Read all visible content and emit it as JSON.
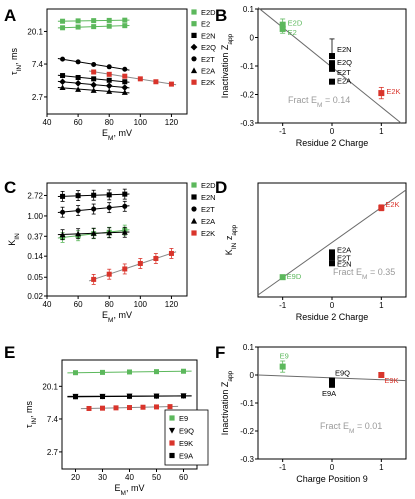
{
  "colors": {
    "green": "#5cb85c",
    "red": "#d9342b",
    "black": "#000000",
    "fit": "#6b6b6b",
    "grid": "#bfbfbf"
  },
  "panels": {
    "A": {
      "letter": "A"
    },
    "B": {
      "letter": "B"
    },
    "C": {
      "letter": "C"
    },
    "D": {
      "letter": "D"
    },
    "E": {
      "letter": "E"
    },
    "F": {
      "letter": "F"
    }
  },
  "chart_data": [
    {
      "id": "A",
      "type": "scatter",
      "xlabel": "E_M, mV",
      "ylabel": "τ_IN, ms",
      "xlim": [
        40,
        130
      ],
      "ylim_log": [
        1.6,
        40
      ],
      "xticks": [
        40,
        60,
        80,
        100,
        120
      ],
      "yticks": [
        {
          "v": 2.7,
          "t": "2.7"
        },
        {
          "v": 7.4,
          "t": "7.4"
        },
        {
          "v": 20.1,
          "t": "20.1"
        }
      ],
      "legend": [
        {
          "name": "E2D",
          "color": "green",
          "marker": "square"
        },
        {
          "name": "E2",
          "color": "green",
          "marker": "square"
        },
        {
          "name": "E2N",
          "color": "black",
          "marker": "square"
        },
        {
          "name": "E2Q",
          "color": "black",
          "marker": "diamond"
        },
        {
          "name": "E2T",
          "color": "black",
          "marker": "circle"
        },
        {
          "name": "E2A",
          "color": "black",
          "marker": "triangle"
        },
        {
          "name": "E2K",
          "color": "red",
          "marker": "square"
        }
      ],
      "series": [
        {
          "name": "E2D",
          "color": "green",
          "marker": "square",
          "x": [
            50,
            60,
            70,
            80,
            90
          ],
          "y": [
            27.5,
            27.8,
            28.0,
            28.2,
            28.4
          ]
        },
        {
          "name": "E2",
          "color": "green",
          "marker": "square",
          "x": [
            50,
            60,
            70,
            80,
            90
          ],
          "y": [
            22.5,
            23.0,
            23.3,
            23.6,
            24.0
          ]
        },
        {
          "name": "E2T",
          "color": "black",
          "marker": "circle",
          "x": [
            50,
            60,
            70,
            80,
            90
          ],
          "y": [
            8.6,
            7.9,
            7.3,
            6.8,
            6.3
          ]
        },
        {
          "name": "E2N",
          "color": "black",
          "marker": "square",
          "x": [
            50,
            60,
            70,
            80,
            90
          ],
          "y": [
            5.2,
            4.9,
            4.7,
            4.5,
            4.3
          ]
        },
        {
          "name": "E2Q",
          "color": "black",
          "marker": "diamond",
          "x": [
            50,
            60,
            70,
            80,
            90
          ],
          "y": [
            4.3,
            4.1,
            3.9,
            3.8,
            3.6
          ]
        },
        {
          "name": "E2A",
          "color": "black",
          "marker": "triangle",
          "x": [
            50,
            60,
            70,
            80,
            90
          ],
          "y": [
            3.6,
            3.4,
            3.3,
            3.2,
            3.1
          ]
        },
        {
          "name": "E2K",
          "color": "red",
          "marker": "square",
          "x": [
            70,
            80,
            90,
            100,
            110,
            120
          ],
          "y": [
            5.8,
            5.4,
            5.1,
            4.7,
            4.3,
            4.0
          ]
        }
      ]
    },
    {
      "id": "B",
      "type": "scatter",
      "xlabel": "Residue 2 Charge",
      "ylabel": "Inactivation Z_app",
      "xlim": [
        -1.5,
        1.5
      ],
      "ylim": [
        -0.3,
        0.1
      ],
      "xticks": [
        -1,
        0,
        1
      ],
      "yticks": [
        0.1,
        0,
        -0.1,
        -0.2,
        -0.3
      ],
      "annotation": "Fract E_M = 0.14",
      "fit": {
        "x": [
          -1.5,
          1.4
        ],
        "y": [
          0.105,
          -0.3
        ]
      },
      "points": [
        {
          "label": "E2D",
          "x": -1,
          "y": 0.045,
          "err": 0.02,
          "color": "green"
        },
        {
          "label": "E2",
          "x": -1,
          "y": 0.03,
          "err": 0.015,
          "color": "green"
        },
        {
          "label": "E2N",
          "x": 0,
          "y": -0.065,
          "err": 0.0,
          "color": "black"
        },
        {
          "label": "E2Q",
          "x": 0,
          "y": -0.09,
          "err": 0.0,
          "color": "black"
        },
        {
          "label": "E2T",
          "x": 0,
          "y": -0.11,
          "err": 0.0,
          "color": "black"
        },
        {
          "label": "E2A",
          "x": 0,
          "y": -0.155,
          "err": 0.0,
          "color": "black"
        },
        {
          "label": "E2K",
          "x": 1,
          "y": -0.195,
          "err": 0.02,
          "color": "red"
        }
      ],
      "errbars": [
        {
          "x": 0,
          "y": -0.03,
          "err": 0.025
        }
      ]
    },
    {
      "id": "C",
      "type": "scatter",
      "xlabel": "E_M, mV",
      "ylabel": "K_IN",
      "xlim": [
        40,
        130
      ],
      "ylim_log": [
        0.02,
        5
      ],
      "xticks": [
        40,
        60,
        80,
        100,
        120
      ],
      "yticks": [
        {
          "v": 2.72,
          "t": "2.72"
        },
        {
          "v": 1.0,
          "t": "1.00"
        },
        {
          "v": 0.37,
          "t": "0.37"
        },
        {
          "v": 0.14,
          "t": "0.14"
        },
        {
          "v": 0.05,
          "t": "0.05"
        },
        {
          "v": 0.02,
          "t": "0.02"
        }
      ],
      "legend": [
        {
          "name": "E2D",
          "color": "green",
          "marker": "square"
        },
        {
          "name": "E2N",
          "color": "black",
          "marker": "square"
        },
        {
          "name": "E2T",
          "color": "black",
          "marker": "circle"
        },
        {
          "name": "E2A",
          "color": "black",
          "marker": "triangle"
        },
        {
          "name": "E2K",
          "color": "red",
          "marker": "square"
        }
      ],
      "series": [
        {
          "name": "E2N",
          "color": "black",
          "marker": "square",
          "x": [
            50,
            60,
            70,
            80,
            90
          ],
          "y": [
            2.6,
            2.7,
            2.75,
            2.8,
            2.9
          ]
        },
        {
          "name": "E2T",
          "color": "black",
          "marker": "circle",
          "x": [
            50,
            60,
            70,
            80,
            90
          ],
          "y": [
            1.2,
            1.3,
            1.4,
            1.5,
            1.6
          ]
        },
        {
          "name": "E2D",
          "color": "green",
          "marker": "square",
          "x": [
            50,
            60,
            70,
            80,
            90
          ],
          "y": [
            0.35,
            0.38,
            0.42,
            0.45,
            0.5
          ]
        },
        {
          "name": "E2A",
          "color": "black",
          "marker": "triangle",
          "x": [
            50,
            60,
            70,
            80,
            90
          ],
          "y": [
            0.4,
            0.42,
            0.43,
            0.44,
            0.45
          ]
        },
        {
          "name": "E2K",
          "color": "red",
          "marker": "square",
          "x": [
            70,
            80,
            90,
            100,
            110,
            120
          ],
          "y": [
            0.045,
            0.058,
            0.075,
            0.098,
            0.125,
            0.16
          ]
        }
      ]
    },
    {
      "id": "D",
      "type": "scatter",
      "xlabel": "Residue 2 Charge",
      "ylabel": "K_IN z_app",
      "xlim": [
        -1.5,
        1.5
      ],
      "ylim": [
        -0.2,
        0.95
      ],
      "xticks": [
        -1,
        0,
        1
      ],
      "annotation": "Fract E_M = 0.35",
      "fit": {
        "x": [
          -1.5,
          1.5
        ],
        "y": [
          -0.18,
          0.88
        ]
      },
      "points": [
        {
          "label": "E9D",
          "x": -1,
          "y": 0.0,
          "err": 0.02,
          "color": "green"
        },
        {
          "label": "E2A",
          "x": 0,
          "y": 0.25,
          "err": 0.0,
          "color": "black"
        },
        {
          "label": "E2T",
          "x": 0,
          "y": 0.2,
          "err": 0.0,
          "color": "black"
        },
        {
          "label": "E2N",
          "x": 0,
          "y": 0.14,
          "err": 0.0,
          "color": "black"
        },
        {
          "label": "E2K",
          "x": 1,
          "y": 0.7,
          "err": 0.03,
          "color": "red"
        }
      ]
    },
    {
      "id": "E",
      "type": "scatter",
      "xlabel": "E_M, mV",
      "ylabel": "τ_IN, ms",
      "xlim": [
        15,
        65
      ],
      "ylim_log": [
        1.6,
        45
      ],
      "xticks": [
        20,
        30,
        40,
        50,
        60
      ],
      "yticks": [
        {
          "v": 2.7,
          "t": "2.7"
        },
        {
          "v": 7.4,
          "t": "7.4"
        },
        {
          "v": 20.1,
          "t": "20.1"
        }
      ],
      "legend": [
        {
          "name": "E9",
          "color": "green",
          "marker": "square"
        },
        {
          "name": "E9Q",
          "color": "black",
          "marker": "triangle-down"
        },
        {
          "name": "E9K",
          "color": "red",
          "marker": "square"
        },
        {
          "name": "E9A",
          "color": "black",
          "marker": "square"
        }
      ],
      "series": [
        {
          "name": "E9",
          "color": "green",
          "marker": "square",
          "x": [
            20,
            30,
            40,
            50,
            60
          ],
          "y": [
            30.5,
            30.8,
            31.2,
            31.5,
            31.9
          ]
        },
        {
          "name": "E9Q",
          "color": "black",
          "marker": "triangle-down",
          "x": [
            20,
            30,
            40,
            50,
            60
          ],
          "y": [
            14.8,
            14.8,
            14.9,
            14.9,
            15.0
          ]
        },
        {
          "name": "E9A",
          "color": "black",
          "marker": "square",
          "x": [
            20,
            30,
            40,
            50,
            60
          ],
          "y": [
            14.6,
            14.7,
            14.8,
            14.9,
            15.0
          ]
        },
        {
          "name": "E9K",
          "color": "red",
          "marker": "square",
          "x": [
            25,
            30,
            35,
            40,
            45,
            50,
            55
          ],
          "y": [
            10.2,
            10.3,
            10.4,
            10.5,
            10.6,
            10.7,
            10.8
          ]
        }
      ]
    },
    {
      "id": "F",
      "type": "scatter",
      "xlabel": "Charge Position 9",
      "ylabel": "Inactivation Z_app",
      "xlim": [
        -1.5,
        1.5
      ],
      "ylim": [
        -0.3,
        0.1
      ],
      "xticks": [
        -1,
        0,
        1
      ],
      "yticks": [
        0.1,
        0,
        -0.1,
        -0.2,
        -0.3
      ],
      "annotation": "Fract E_M = 0.01",
      "fit": {
        "x": [
          -1.5,
          1.5
        ],
        "y": [
          0.0,
          -0.02
        ]
      },
      "points": [
        {
          "label": "E9",
          "x": -1,
          "y": 0.03,
          "err": 0.02,
          "color": "green"
        },
        {
          "label": "E9Q",
          "x": 0,
          "y": -0.02,
          "err": 0.0,
          "color": "black"
        },
        {
          "label": "E9A",
          "x": 0,
          "y": -0.035,
          "err": 0.0,
          "color": "black"
        },
        {
          "label": "E9K",
          "x": 1,
          "y": 0.0,
          "err": 0.0,
          "color": "red"
        }
      ]
    }
  ]
}
